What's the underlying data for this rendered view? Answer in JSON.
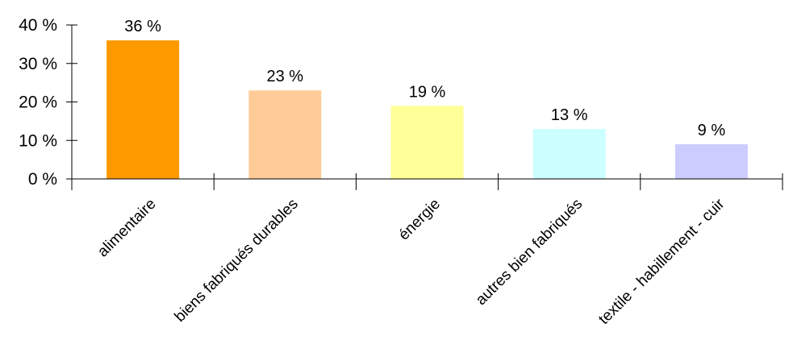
{
  "chart_data": {
    "type": "bar",
    "categories": [
      "alimentaire",
      "biens fabriqués durables",
      "énergie",
      "autres bien fabriqués",
      "textile - habillement - cuir"
    ],
    "values": [
      36,
      23,
      19,
      13,
      9
    ],
    "data_labels": [
      "36 %",
      "23 %",
      "19 %",
      "13 %",
      "9 %"
    ],
    "bar_colors": [
      "#ff9900",
      "#ffcc99",
      "#ffff99",
      "#ccffff",
      "#ccccff"
    ],
    "ylim": [
      0,
      40
    ],
    "y_ticks": [
      0,
      10,
      20,
      30,
      40
    ],
    "y_tick_labels": [
      "0 %",
      "10 %",
      "20 %",
      "30 %",
      "40 %"
    ],
    "grid": false,
    "legend": "none"
  }
}
